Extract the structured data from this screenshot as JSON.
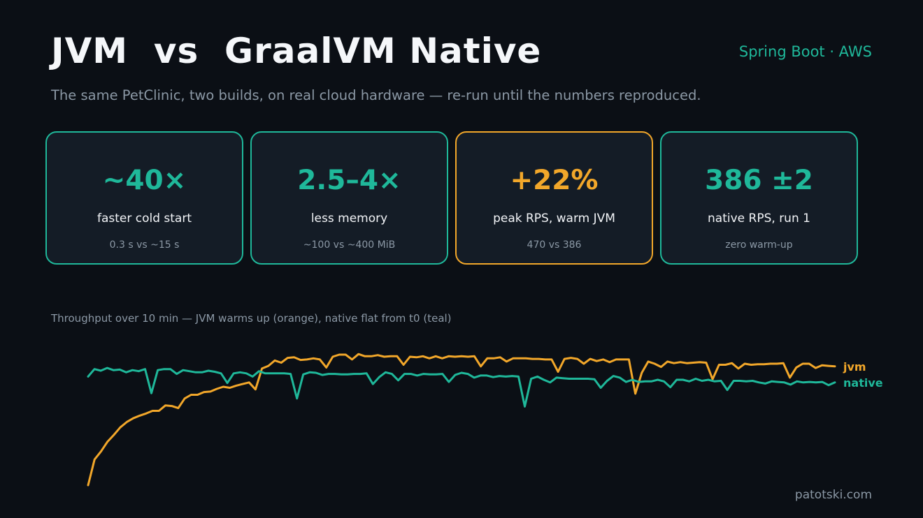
{
  "header": {
    "title": "JVM  vs  GraalVM Native",
    "tag": "Spring Boot · AWS",
    "subtitle": "The same PetClinic, two builds, on real cloud hardware — re-run until the numbers reproduced."
  },
  "cards": [
    {
      "value": "~40×",
      "label": "faster cold start",
      "note": "0.3 s  vs  ~15 s",
      "accent": false
    },
    {
      "value": "2.5–4×",
      "label": "less memory",
      "note": "~100  vs  ~400 MiB",
      "accent": false
    },
    {
      "value": "+22%",
      "label": "peak RPS, warm JVM",
      "note": "470  vs  386",
      "accent": true
    },
    {
      "value": "386 ±2",
      "label": "native RPS, run 1",
      "note": "zero warm-up",
      "accent": false
    }
  ],
  "chart_caption": "Throughput over 10 min — JVM warms up (orange), native flat from t0 (teal)",
  "footer": "patotski.com",
  "colors": {
    "jvm": "#f2a72a",
    "native": "#1fb89a",
    "background": "#0b0f15"
  },
  "chart_data": {
    "type": "line",
    "title": "",
    "xlabel": "",
    "ylabel": "",
    "x_unit": "min",
    "xlim": [
      0,
      10
    ],
    "ylim": [
      200,
      500
    ],
    "grid": false,
    "legend": "right-end labels",
    "series": [
      {
        "name": "jvm",
        "color": "#f2a72a",
        "values": [
          183,
          231,
          246,
          264,
          277,
          291,
          301,
          308,
          313,
          317,
          322,
          322,
          332,
          331,
          327,
          345,
          352,
          352,
          357,
          358,
          363,
          367,
          365,
          369,
          372,
          375,
          362,
          401,
          406,
          416,
          412,
          421,
          422,
          417,
          418,
          420,
          418,
          403,
          423,
          427,
          427,
          418,
          428,
          424,
          424,
          426,
          423,
          424,
          424,
          408,
          423,
          422,
          424,
          420,
          424,
          420,
          424,
          423,
          424,
          423,
          424,
          405,
          420,
          420,
          422,
          414,
          420,
          420,
          420,
          419,
          419,
          418,
          418,
          395,
          419,
          421,
          419,
          410,
          419,
          415,
          418,
          413,
          418,
          418,
          418,
          354,
          393,
          414,
          410,
          404,
          414,
          411,
          413,
          411,
          412,
          413,
          412,
          381,
          408,
          408,
          411,
          401,
          410,
          408,
          409,
          409,
          410,
          410,
          411,
          384,
          403,
          410,
          410,
          402,
          407,
          406,
          405
        ]
      },
      {
        "name": "native",
        "color": "#1fb89a",
        "values": [
          386,
          400,
          397,
          402,
          398,
          399,
          394,
          398,
          396,
          400,
          355,
          398,
          400,
          400,
          391,
          398,
          396,
          394,
          394,
          397,
          395,
          392,
          374,
          392,
          394,
          392,
          386,
          396,
          392,
          392,
          392,
          392,
          391,
          345,
          390,
          394,
          393,
          389,
          391,
          391,
          390,
          390,
          391,
          391,
          392,
          372,
          385,
          394,
          391,
          379,
          391,
          391,
          388,
          391,
          390,
          390,
          391,
          376,
          389,
          393,
          391,
          384,
          388,
          388,
          385,
          387,
          386,
          387,
          386,
          330,
          382,
          386,
          380,
          375,
          384,
          383,
          382,
          382,
          382,
          382,
          381,
          365,
          378,
          387,
          384,
          376,
          380,
          376,
          377,
          377,
          380,
          377,
          366,
          380,
          380,
          377,
          382,
          378,
          380,
          377,
          378,
          361,
          378,
          378,
          377,
          378,
          375,
          373,
          377,
          376,
          375,
          371,
          377,
          375,
          376,
          375,
          376,
          370,
          375
        ]
      }
    ]
  }
}
